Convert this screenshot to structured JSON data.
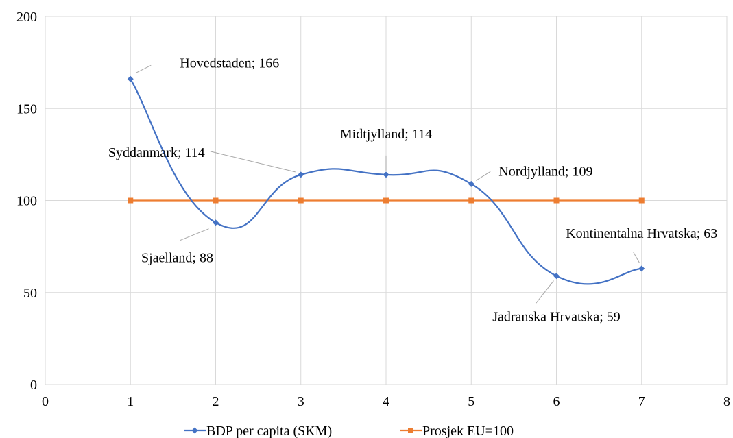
{
  "chart_data": {
    "type": "scatter",
    "xlim": [
      0,
      8
    ],
    "ylim": [
      0,
      200
    ],
    "x_ticks": [
      "0",
      "1",
      "2",
      "3",
      "4",
      "5",
      "6",
      "7",
      "8"
    ],
    "y_ticks": [
      "0",
      "50",
      "100",
      "150",
      "200"
    ],
    "grid": true,
    "legend_position": "bottom",
    "series": [
      {
        "name": "BDP per capita (SKM)",
        "color": "#4472c4",
        "marker": "diamond",
        "smooth": true,
        "x": [
          1,
          2,
          3,
          4,
          5,
          6,
          7
        ],
        "y": [
          166,
          88,
          114,
          114,
          109,
          59,
          63
        ],
        "labels": [
          "Hovedstaden; 166",
          "Sjaelland; 88",
          "Syddanmark; 114",
          "Midtjylland; 114",
          "Nordjylland; 109",
          "Jadranska Hrvatska; 59",
          "Kontinentalna Hrvatska; 63"
        ]
      },
      {
        "name": "Prosjek EU=100",
        "color": "#ed7d31",
        "marker": "square",
        "smooth": false,
        "x": [
          1,
          2,
          3,
          4,
          5,
          6,
          7
        ],
        "y": [
          100,
          100,
          100,
          100,
          100,
          100,
          100
        ]
      }
    ]
  }
}
